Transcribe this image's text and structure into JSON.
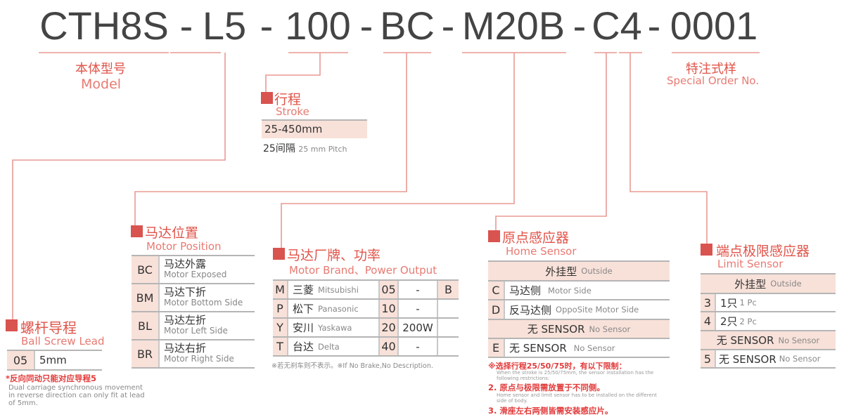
{
  "code": {
    "segments": [
      "CTH8S",
      "L5",
      "100",
      "BC",
      "M20B",
      "C4",
      "0001"
    ],
    "separator": "-"
  },
  "colors": {
    "accent": "#d9534f",
    "title": "#e0544a",
    "pink_cell": "#f8e1d9",
    "line": "#e89a94"
  },
  "model": {
    "cn": "本体型号",
    "en": "Model"
  },
  "special": {
    "cn": "特注式样",
    "en": "Special Order No."
  },
  "stroke": {
    "cn": "行程",
    "en": "Stroke",
    "range": "25-450mm",
    "pitch_cn": "25间隔",
    "pitch_en": "25 mm Pitch"
  },
  "lead": {
    "cn": "螺杆导程",
    "en": "Ball Screw Lead",
    "rows": [
      {
        "code": "05",
        "value": "5mm"
      }
    ],
    "note_cn": "*反向同动只能对应导程5",
    "note_en": "Dual carriage synchronous movement in reverse direction can only fit at lead of 5mm."
  },
  "position": {
    "cn": "马达位置",
    "en": "Motor Position",
    "rows": [
      {
        "code": "BC",
        "cn": "马达外露",
        "en": "Motor Exposed"
      },
      {
        "code": "BM",
        "cn": "马达下折",
        "en": "Motor Bottom Side"
      },
      {
        "code": "BL",
        "cn": "马达左折",
        "en": "Motor Left Side"
      },
      {
        "code": "BR",
        "cn": "马达右折",
        "en": "Motor Right Side"
      }
    ]
  },
  "brand": {
    "cn": "马达厂牌、功率",
    "en": "Motor Brand、Power Output",
    "brake": "B",
    "rows": [
      {
        "code": "M",
        "cn": "三菱",
        "en": "Mitsubishi",
        "pcode": "05",
        "power": "-"
      },
      {
        "code": "P",
        "cn": "松下",
        "en": "Panasonic",
        "pcode": "10",
        "power": "-"
      },
      {
        "code": "Y",
        "cn": "安川",
        "en": "Yaskawa",
        "pcode": "20",
        "power": "200W"
      },
      {
        "code": "T",
        "cn": "台达",
        "en": "Delta",
        "pcode": "40",
        "power": "-"
      }
    ],
    "note": "※若无刹车则不表示。※If No Brake,No Description."
  },
  "home": {
    "cn": "原点感应器",
    "en": "Home Sensor",
    "h1_cn": "外挂型",
    "h1_en": "Outside",
    "rows": [
      {
        "code": "C",
        "cn": "马达侧",
        "en": "Motor Side"
      },
      {
        "code": "D",
        "cn": "反马达侧",
        "en": "OppoSite Motor Side"
      }
    ],
    "h2_cn": "无 SENSOR",
    "h2_en": "No Sensor",
    "row_e": {
      "code": "E",
      "cn": "无 SENSOR",
      "en": "No Sensor"
    },
    "notes": [
      {
        "cn": "※选择行程25/50/75时，有以下限制：",
        "en": "When the stroke is 25/50/75mm, the sensor installation has the following restrictions:"
      },
      {
        "cn": "2. 原点与极限需放置于不同侧。",
        "en": "Home sensor and limit sensor has to be installed on the different side of body."
      },
      {
        "cn": "3. 滑座左右两侧皆需安装感应片。",
        "en": ""
      }
    ]
  },
  "limit": {
    "cn": "端点极限感应器",
    "en": "Limit Sensor",
    "h1_cn": "外挂型",
    "h1_en": "Outside",
    "rows": [
      {
        "code": "3",
        "cn": "1只",
        "en": "1 Pc"
      },
      {
        "code": "4",
        "cn": "2只",
        "en": "2 Pc"
      }
    ],
    "h2_cn": "无 SENSOR",
    "h2_en": "No Sensor",
    "row_5": {
      "code": "5",
      "cn": "无 SENSOR",
      "en": "No Sensor"
    }
  }
}
